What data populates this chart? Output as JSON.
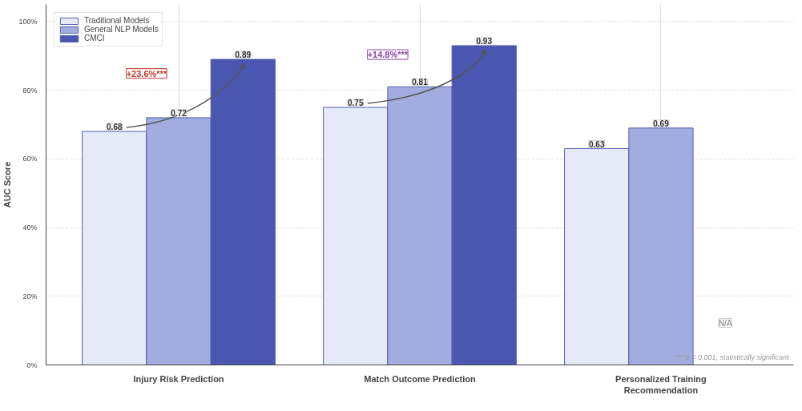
{
  "chart_data": {
    "type": "bar",
    "ylabel": "AUC Score",
    "categories": [
      "Injury Risk Prediction",
      "Match Outcome Prediction",
      "Personalized Training Recommendation"
    ],
    "series": [
      {
        "name": "Traditional Models",
        "color": "#e6e9f7",
        "values": [
          0.68,
          0.75,
          0.63
        ],
        "value_labels": [
          "0.68",
          "0.75",
          "0.63"
        ]
      },
      {
        "name": "General NLP Models",
        "color": "#a3acdf",
        "values": [
          0.72,
          0.81,
          0.69
        ],
        "value_labels": [
          "0.72",
          "0.81",
          "0.69"
        ]
      },
      {
        "name": "CMCI",
        "color": "#4a56b0",
        "values": [
          0.89,
          0.93,
          null
        ],
        "value_labels": [
          "0.89",
          "0.93",
          "N/A"
        ]
      }
    ],
    "ylim": [
      0,
      1.05
    ],
    "yticks": [
      {
        "value": 0,
        "label": "0%"
      },
      {
        "value": 0.2,
        "label": "20%"
      },
      {
        "value": 0.4,
        "label": "40%"
      },
      {
        "value": 0.6,
        "label": "60%"
      },
      {
        "value": 0.8,
        "label": "80%"
      },
      {
        "value": 1.0,
        "label": "100%"
      }
    ],
    "grid": true,
    "legend": "top left",
    "annotations": [
      "+23.6%***",
      "+14.8%***",
      "*** p < 0.001, statistically significant"
    ]
  }
}
